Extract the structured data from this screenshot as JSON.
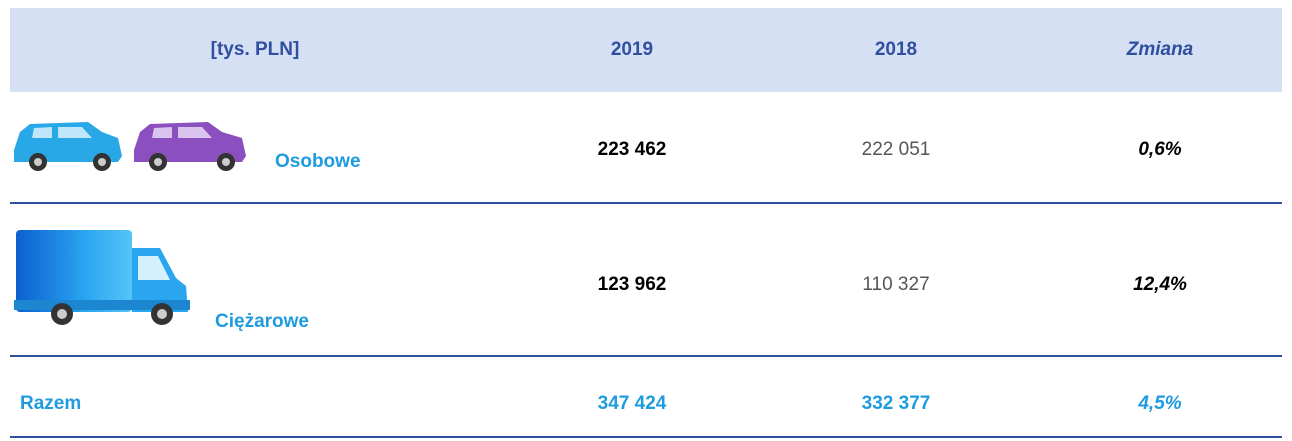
{
  "table": {
    "header": [
      "[tys. PLN]",
      "2019",
      "2018",
      "Zmiana"
    ],
    "rows": [
      [
        "Osobowe",
        "223 462",
        "222 051",
        "0,6%"
      ],
      [
        "Ciężarowe",
        "123 962",
        "110 327",
        "12,4%"
      ],
      [
        "Razem",
        "347 424",
        "332 377",
        "4,5%"
      ]
    ]
  }
}
